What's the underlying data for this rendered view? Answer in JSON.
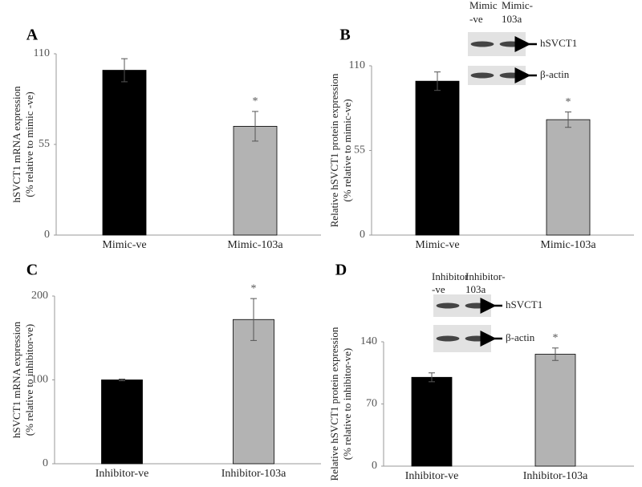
{
  "chart_data": [
    {
      "type": "bar",
      "panel": "A",
      "ylabel": [
        "hSVCT1 mRNA expression",
        "(% relative to mimic -ve)"
      ],
      "categories": [
        "Mimic-ve",
        "Mimic-103a"
      ],
      "values": [
        100,
        66
      ],
      "errors": [
        7,
        9
      ],
      "colors": [
        "#000000",
        "#b3b3b3"
      ],
      "annotations": [
        null,
        "*"
      ],
      "ylim": [
        0,
        110
      ],
      "yticks": [
        0,
        55,
        110
      ]
    },
    {
      "type": "bar",
      "panel": "B",
      "ylabel": [
        "Relative hSVCT1 protein expression",
        "(% relative to mimic-ve)"
      ],
      "categories": [
        "Mimic-ve",
        "Mimic-103a"
      ],
      "values": [
        100,
        75
      ],
      "errors": [
        6,
        5
      ],
      "colors": [
        "#000000",
        "#b3b3b3"
      ],
      "annotations": [
        null,
        "*"
      ],
      "ylim": [
        0,
        110
      ],
      "yticks": [
        0,
        55,
        110
      ],
      "blot": {
        "lanes": [
          [
            "Mimic",
            "-ve"
          ],
          [
            "Mimic-",
            "103a"
          ]
        ],
        "bands": [
          "hSVCT1",
          "β-actin"
        ]
      }
    },
    {
      "type": "bar",
      "panel": "C",
      "ylabel": [
        "hSVCT1 mRNA expression",
        "(% relative to inhibitor-ve)"
      ],
      "categories": [
        "Inhibitor-ve",
        "Inhibitor-103a"
      ],
      "values": [
        100,
        172
      ],
      "errors": [
        1,
        25
      ],
      "colors": [
        "#000000",
        "#b3b3b3"
      ],
      "annotations": [
        null,
        "*"
      ],
      "ylim": [
        0,
        200
      ],
      "yticks": [
        0,
        100,
        200
      ]
    },
    {
      "type": "bar",
      "panel": "D",
      "ylabel": [
        "Relative hSVCT1 protein expression",
        "(% relative to inhibitor-ve)"
      ],
      "categories": [
        "Inhibitor-ve",
        "Inhibitor-103a"
      ],
      "values": [
        100,
        126
      ],
      "errors": [
        5,
        7
      ],
      "colors": [
        "#000000",
        "#b3b3b3"
      ],
      "annotations": [
        null,
        "*"
      ],
      "ylim": [
        0,
        140
      ],
      "yticks": [
        0,
        70,
        140
      ],
      "blot": {
        "lanes": [
          [
            "Inhibitor",
            "-ve"
          ],
          [
            "Inhibitor-",
            "103a"
          ]
        ],
        "bands": [
          "hSVCT1",
          "β-actin"
        ]
      }
    }
  ]
}
